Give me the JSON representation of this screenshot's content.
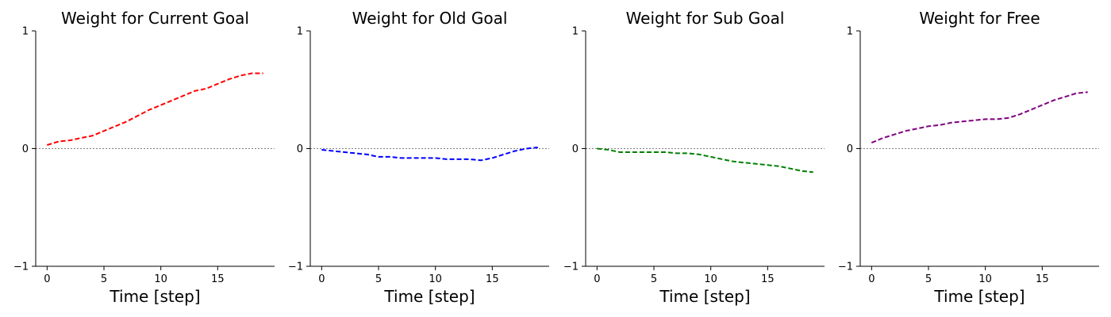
{
  "chart_data": [
    {
      "type": "line",
      "title": "Weight for Current Goal",
      "xlabel": "Time [step]",
      "ylabel": "",
      "xlim": [
        -1,
        20
      ],
      "ylim": [
        -1,
        1
      ],
      "xticks": [
        0,
        5,
        10,
        15
      ],
      "yticks": [
        -1,
        0,
        1
      ],
      "hline": 0,
      "color": "#ff0000",
      "x": [
        0,
        1,
        2,
        3,
        4,
        5,
        6,
        7,
        8,
        9,
        10,
        11,
        12,
        13,
        14,
        15,
        16,
        17,
        18,
        19
      ],
      "y": [
        0.03,
        0.06,
        0.07,
        0.09,
        0.11,
        0.15,
        0.19,
        0.23,
        0.28,
        0.33,
        0.37,
        0.41,
        0.45,
        0.49,
        0.51,
        0.55,
        0.59,
        0.62,
        0.64,
        0.64
      ]
    },
    {
      "type": "line",
      "title": "Weight for Old Goal",
      "xlabel": "Time [step]",
      "ylabel": "",
      "xlim": [
        -1,
        20
      ],
      "ylim": [
        -1,
        1
      ],
      "xticks": [
        0,
        5,
        10,
        15
      ],
      "yticks": [
        -1,
        0,
        1
      ],
      "hline": 0,
      "color": "#0000ff",
      "x": [
        0,
        1,
        2,
        3,
        4,
        5,
        6,
        7,
        8,
        9,
        10,
        11,
        12,
        13,
        14,
        15,
        16,
        17,
        18,
        19
      ],
      "y": [
        -0.01,
        -0.02,
        -0.03,
        -0.04,
        -0.05,
        -0.07,
        -0.07,
        -0.08,
        -0.08,
        -0.08,
        -0.08,
        -0.09,
        -0.09,
        -0.09,
        -0.1,
        -0.08,
        -0.05,
        -0.02,
        0.0,
        0.01
      ]
    },
    {
      "type": "line",
      "title": "Weight for Sub Goal",
      "xlabel": "Time [step]",
      "ylabel": "",
      "xlim": [
        -1,
        20
      ],
      "ylim": [
        -1,
        1
      ],
      "xticks": [
        0,
        5,
        10,
        15
      ],
      "yticks": [
        -1,
        0,
        1
      ],
      "hline": 0,
      "color": "#008000",
      "x": [
        0,
        1,
        2,
        3,
        4,
        5,
        6,
        7,
        8,
        9,
        10,
        11,
        12,
        13,
        14,
        15,
        16,
        17,
        18,
        19
      ],
      "y": [
        0.0,
        -0.01,
        -0.03,
        -0.03,
        -0.03,
        -0.03,
        -0.03,
        -0.04,
        -0.04,
        -0.05,
        -0.07,
        -0.09,
        -0.11,
        -0.12,
        -0.13,
        -0.14,
        -0.15,
        -0.17,
        -0.19,
        -0.2
      ]
    },
    {
      "type": "line",
      "title": "Weight for Free",
      "xlabel": "Time [step]",
      "ylabel": "",
      "xlim": [
        -1,
        20
      ],
      "ylim": [
        -1,
        1
      ],
      "xticks": [
        0,
        5,
        10,
        15
      ],
      "yticks": [
        -1,
        0,
        1
      ],
      "hline": 0,
      "color": "#800080",
      "x": [
        0,
        1,
        2,
        3,
        4,
        5,
        6,
        7,
        8,
        9,
        10,
        11,
        12,
        13,
        14,
        15,
        16,
        17,
        18,
        19
      ],
      "y": [
        0.05,
        0.09,
        0.12,
        0.15,
        0.17,
        0.19,
        0.2,
        0.22,
        0.23,
        0.24,
        0.25,
        0.25,
        0.26,
        0.29,
        0.33,
        0.37,
        0.41,
        0.44,
        0.47,
        0.48
      ]
    }
  ]
}
